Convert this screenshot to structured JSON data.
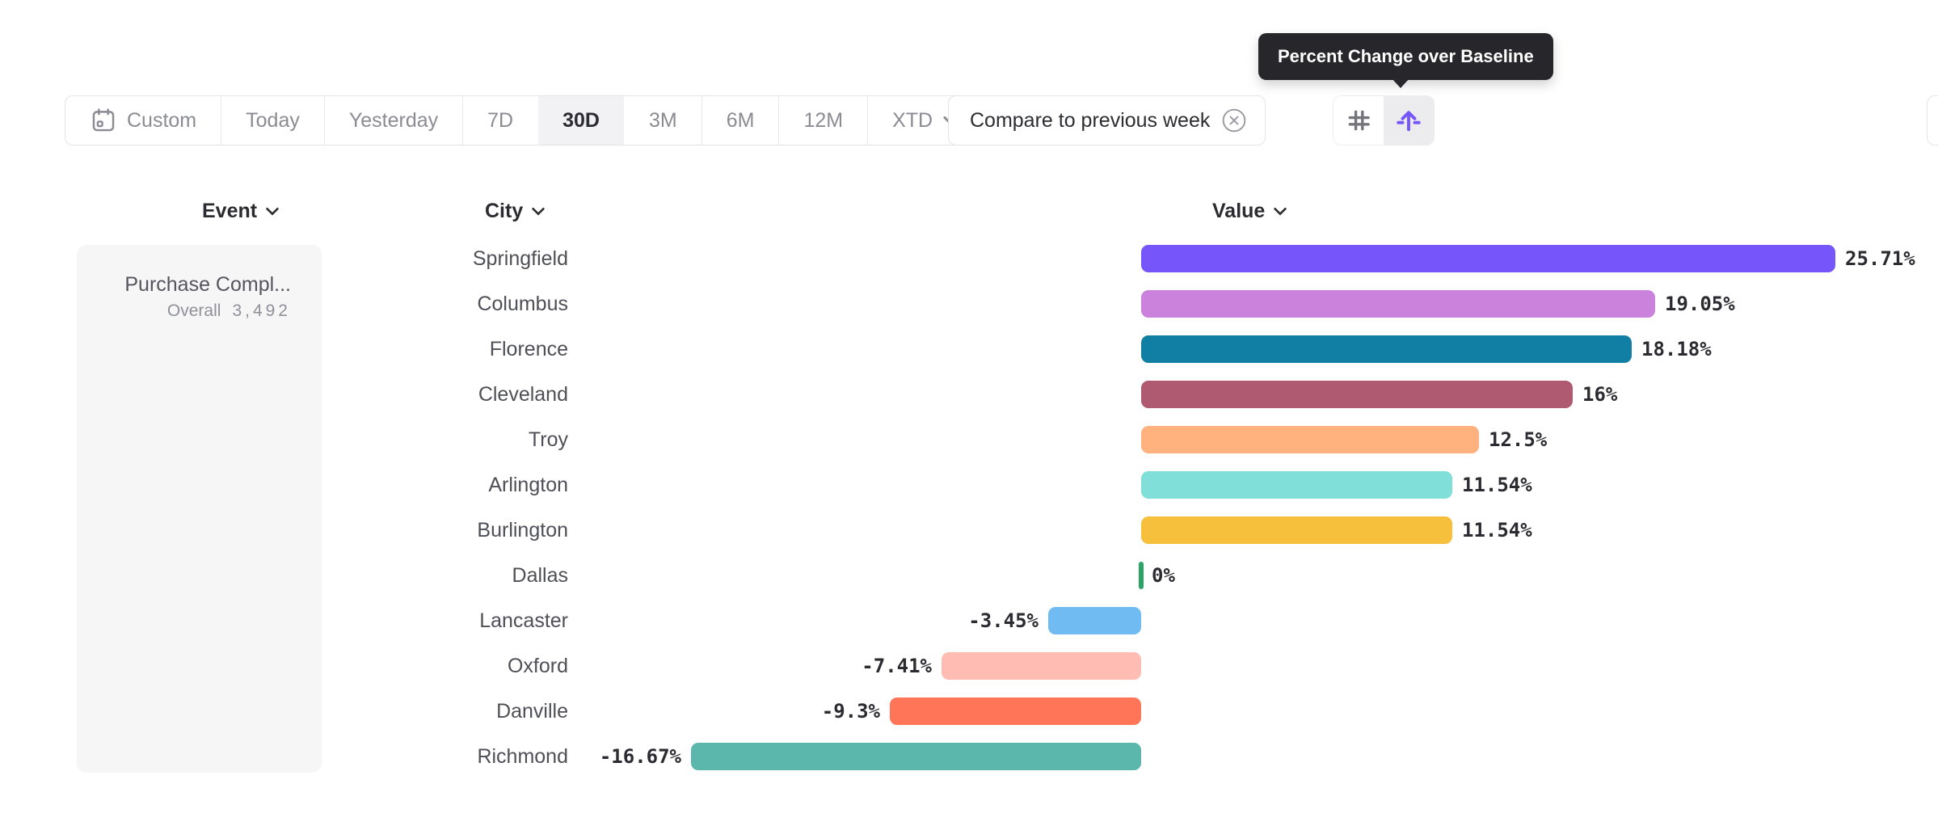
{
  "tooltip": {
    "text": "Percent Change over Baseline"
  },
  "toolbar": {
    "date_range_buttons": [
      {
        "label": "Custom",
        "selected": false
      },
      {
        "label": "Today",
        "selected": false
      },
      {
        "label": "Yesterday",
        "selected": false
      },
      {
        "label": "7D",
        "selected": false
      },
      {
        "label": "30D",
        "selected": true
      },
      {
        "label": "3M",
        "selected": false
      },
      {
        "label": "6M",
        "selected": false
      },
      {
        "label": "12M",
        "selected": false
      },
      {
        "label": "XTD",
        "selected": false
      }
    ],
    "compare_chip": {
      "label": "Compare to previous week"
    },
    "display_mode_toggle": {
      "options": [
        "numbers",
        "percent-change"
      ],
      "selected": "percent-change"
    }
  },
  "columns": {
    "event": "Event",
    "city": "City",
    "value": "Value"
  },
  "event_card": {
    "title": "Purchase Compl...",
    "metric_label": "Overall",
    "metric_value": "3,492"
  },
  "chart_data": {
    "type": "bar",
    "orientation": "horizontal",
    "title": "Percent Change over Baseline",
    "unit": "%",
    "baseline": 0,
    "xlim": [
      -20,
      30
    ],
    "grid": false,
    "categories": [
      "Springfield",
      "Columbus",
      "Florence",
      "Cleveland",
      "Troy",
      "Arlington",
      "Burlington",
      "Dallas",
      "Lancaster",
      "Oxford",
      "Danville",
      "Richmond"
    ],
    "values": [
      25.71,
      19.05,
      18.18,
      16,
      12.5,
      11.54,
      11.54,
      0,
      -3.45,
      -7.41,
      -9.3,
      -16.67
    ],
    "value_labels": [
      "25.71%",
      "19.05%",
      "18.18%",
      "16%",
      "12.5%",
      "11.54%",
      "11.54%",
      "0%",
      "-3.45%",
      "-7.41%",
      "-9.3%",
      "-16.67%"
    ],
    "colors": [
      "#7656fb",
      "#cb82dc",
      "#117ea4",
      "#b05a72",
      "#ffb27d",
      "#81dfd9",
      "#f6bf3c",
      "#2aa566",
      "#70bbf2",
      "#ffbcb2",
      "#fe7557",
      "#5bb6ab"
    ]
  },
  "colors": {
    "accent_purple": "#7656fb",
    "tooltip_bg": "#26262b",
    "selected_bg": "#f2f2f4",
    "border": "#e4e4e8",
    "zero_tick": "#2aa566",
    "muted_text": "#8b8b93",
    "dark_text": "#2c2c33"
  }
}
